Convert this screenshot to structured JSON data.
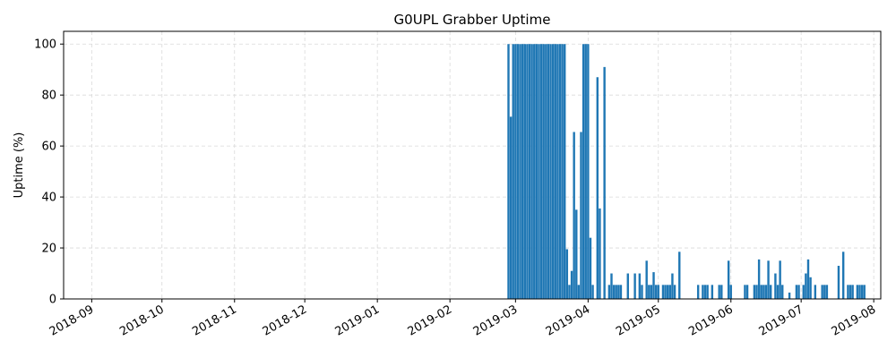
{
  "chart_data": {
    "type": "bar",
    "title": "G0UPL Grabber Uptime",
    "xlabel": "",
    "ylabel": "Uptime (%)",
    "grid": true,
    "xlim": [
      "2018-08-20",
      "2019-08-04"
    ],
    "ylim": [
      0,
      105
    ],
    "x_ticks": [
      "2018-09",
      "2018-10",
      "2018-11",
      "2018-12",
      "2019-01",
      "2019-02",
      "2019-03",
      "2019-04",
      "2019-05",
      "2019-06",
      "2019-07",
      "2019-08"
    ],
    "y_ticks": [
      0,
      20,
      40,
      60,
      80,
      100
    ],
    "bar_color": "#1f77b4",
    "points": [
      {
        "x": "2019-02-26",
        "y": 100
      },
      {
        "x": "2019-02-27",
        "y": 71.5
      },
      {
        "x": "2019-02-28",
        "y": 100
      },
      {
        "x": "2019-03-01",
        "y": 100
      },
      {
        "x": "2019-03-02",
        "y": 100
      },
      {
        "x": "2019-03-03",
        "y": 100
      },
      {
        "x": "2019-03-04",
        "y": 100
      },
      {
        "x": "2019-03-05",
        "y": 100
      },
      {
        "x": "2019-03-06",
        "y": 100
      },
      {
        "x": "2019-03-07",
        "y": 100
      },
      {
        "x": "2019-03-08",
        "y": 100
      },
      {
        "x": "2019-03-09",
        "y": 100
      },
      {
        "x": "2019-03-10",
        "y": 100
      },
      {
        "x": "2019-03-11",
        "y": 100
      },
      {
        "x": "2019-03-12",
        "y": 100
      },
      {
        "x": "2019-03-13",
        "y": 100
      },
      {
        "x": "2019-03-14",
        "y": 100
      },
      {
        "x": "2019-03-15",
        "y": 100
      },
      {
        "x": "2019-03-16",
        "y": 100
      },
      {
        "x": "2019-03-17",
        "y": 100
      },
      {
        "x": "2019-03-18",
        "y": 100
      },
      {
        "x": "2019-03-19",
        "y": 100
      },
      {
        "x": "2019-03-20",
        "y": 100
      },
      {
        "x": "2019-03-21",
        "y": 100
      },
      {
        "x": "2019-03-22",
        "y": 100
      },
      {
        "x": "2019-03-23",
        "y": 19.5
      },
      {
        "x": "2019-03-24",
        "y": 5.5
      },
      {
        "x": "2019-03-25",
        "y": 11
      },
      {
        "x": "2019-03-26",
        "y": 65.5
      },
      {
        "x": "2019-03-27",
        "y": 35
      },
      {
        "x": "2019-03-28",
        "y": 5.5
      },
      {
        "x": "2019-03-29",
        "y": 65.5
      },
      {
        "x": "2019-03-30",
        "y": 100
      },
      {
        "x": "2019-03-31",
        "y": 100
      },
      {
        "x": "2019-04-01",
        "y": 100
      },
      {
        "x": "2019-04-02",
        "y": 24
      },
      {
        "x": "2019-04-03",
        "y": 5.5
      },
      {
        "x": "2019-04-05",
        "y": 87
      },
      {
        "x": "2019-04-06",
        "y": 35.5
      },
      {
        "x": "2019-04-08",
        "y": 91
      },
      {
        "x": "2019-04-10",
        "y": 5.5
      },
      {
        "x": "2019-04-11",
        "y": 10
      },
      {
        "x": "2019-04-12",
        "y": 5.5
      },
      {
        "x": "2019-04-13",
        "y": 5.5
      },
      {
        "x": "2019-04-14",
        "y": 5.5
      },
      {
        "x": "2019-04-15",
        "y": 5.5
      },
      {
        "x": "2019-04-18",
        "y": 10
      },
      {
        "x": "2019-04-21",
        "y": 10
      },
      {
        "x": "2019-04-23",
        "y": 10
      },
      {
        "x": "2019-04-24",
        "y": 5.5
      },
      {
        "x": "2019-04-26",
        "y": 15
      },
      {
        "x": "2019-04-27",
        "y": 5.5
      },
      {
        "x": "2019-04-28",
        "y": 5.5
      },
      {
        "x": "2019-04-29",
        "y": 10.5
      },
      {
        "x": "2019-04-30",
        "y": 5.5
      },
      {
        "x": "2019-05-01",
        "y": 5.5
      },
      {
        "x": "2019-05-03",
        "y": 5.5
      },
      {
        "x": "2019-05-04",
        "y": 5.5
      },
      {
        "x": "2019-05-05",
        "y": 5.5
      },
      {
        "x": "2019-05-06",
        "y": 5.5
      },
      {
        "x": "2019-05-07",
        "y": 10
      },
      {
        "x": "2019-05-08",
        "y": 5.5
      },
      {
        "x": "2019-05-10",
        "y": 18.5
      },
      {
        "x": "2019-05-18",
        "y": 5.5
      },
      {
        "x": "2019-05-20",
        "y": 5.5
      },
      {
        "x": "2019-05-21",
        "y": 5.5
      },
      {
        "x": "2019-05-22",
        "y": 5.5
      },
      {
        "x": "2019-05-24",
        "y": 5.5
      },
      {
        "x": "2019-05-27",
        "y": 5.5
      },
      {
        "x": "2019-05-28",
        "y": 5.5
      },
      {
        "x": "2019-05-31",
        "y": 15
      },
      {
        "x": "2019-06-01",
        "y": 5.5
      },
      {
        "x": "2019-06-07",
        "y": 5.5
      },
      {
        "x": "2019-06-08",
        "y": 5.5
      },
      {
        "x": "2019-06-11",
        "y": 5.5
      },
      {
        "x": "2019-06-12",
        "y": 5.5
      },
      {
        "x": "2019-06-13",
        "y": 15.5
      },
      {
        "x": "2019-06-14",
        "y": 5.5
      },
      {
        "x": "2019-06-15",
        "y": 5.5
      },
      {
        "x": "2019-06-16",
        "y": 5.5
      },
      {
        "x": "2019-06-17",
        "y": 15
      },
      {
        "x": "2019-06-18",
        "y": 5.5
      },
      {
        "x": "2019-06-20",
        "y": 10
      },
      {
        "x": "2019-06-21",
        "y": 5.5
      },
      {
        "x": "2019-06-22",
        "y": 15
      },
      {
        "x": "2019-06-23",
        "y": 5.5
      },
      {
        "x": "2019-06-26",
        "y": 2.5
      },
      {
        "x": "2019-06-29",
        "y": 5.5
      },
      {
        "x": "2019-06-30",
        "y": 5.5
      },
      {
        "x": "2019-07-02",
        "y": 5.5
      },
      {
        "x": "2019-07-03",
        "y": 10
      },
      {
        "x": "2019-07-04",
        "y": 15.5
      },
      {
        "x": "2019-07-05",
        "y": 8.5
      },
      {
        "x": "2019-07-07",
        "y": 5.5
      },
      {
        "x": "2019-07-10",
        "y": 5.5
      },
      {
        "x": "2019-07-11",
        "y": 5.5
      },
      {
        "x": "2019-07-12",
        "y": 5.5
      },
      {
        "x": "2019-07-17",
        "y": 13
      },
      {
        "x": "2019-07-19",
        "y": 18.5
      },
      {
        "x": "2019-07-21",
        "y": 5.5
      },
      {
        "x": "2019-07-22",
        "y": 5.5
      },
      {
        "x": "2019-07-23",
        "y": 5.5
      },
      {
        "x": "2019-07-25",
        "y": 5.5
      },
      {
        "x": "2019-07-26",
        "y": 5.5
      },
      {
        "x": "2019-07-27",
        "y": 5.5
      },
      {
        "x": "2019-07-28",
        "y": 5.5
      }
    ]
  }
}
